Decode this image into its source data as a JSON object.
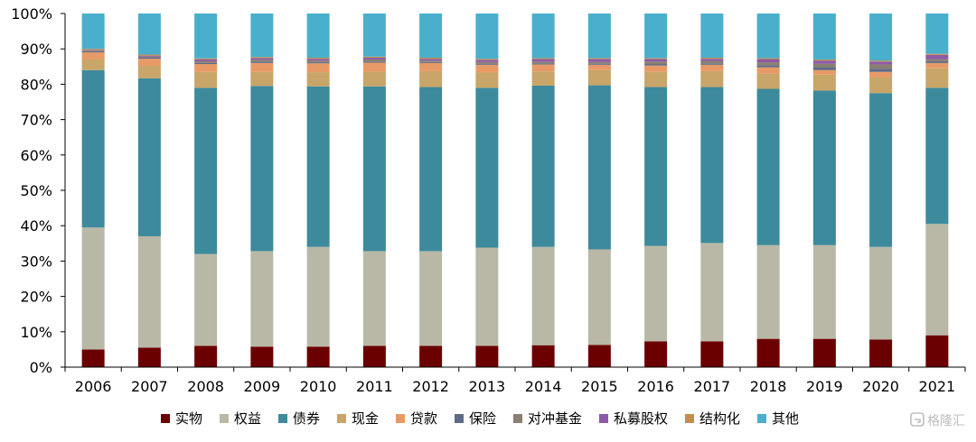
{
  "chart_data": {
    "type": "bar",
    "stacked": true,
    "categories": [
      "2006",
      "2007",
      "2008",
      "2009",
      "2010",
      "2011",
      "2012",
      "2013",
      "2014",
      "2015",
      "2016",
      "2017",
      "2018",
      "2019",
      "2020",
      "2021"
    ],
    "ylim": [
      0,
      100
    ],
    "yticks": [
      "0%",
      "10%",
      "20%",
      "30%",
      "40%",
      "50%",
      "60%",
      "70%",
      "80%",
      "90%",
      "100%"
    ],
    "legend_position": "bottom",
    "series": [
      {
        "name": "实物",
        "color": "#6b0000",
        "values": [
          5.0,
          5.5,
          6.0,
          5.8,
          5.8,
          6.0,
          6.0,
          6.0,
          6.2,
          6.3,
          7.3,
          7.3,
          8.0,
          8.0,
          7.8,
          9.0
        ]
      },
      {
        "name": "权益",
        "color": "#b9b8a6",
        "values": [
          34.5,
          31.5,
          26.0,
          27.0,
          28.2,
          26.8,
          26.8,
          27.8,
          27.8,
          27.0,
          27.0,
          27.8,
          26.5,
          26.5,
          26.2,
          31.5
        ]
      },
      {
        "name": "债券",
        "color": "#3d8a9c",
        "values": [
          44.5,
          44.7,
          47.0,
          46.7,
          45.4,
          46.6,
          46.4,
          45.2,
          45.6,
          46.4,
          44.9,
          44.1,
          44.2,
          43.7,
          43.5,
          38.5
        ]
      },
      {
        "name": "现金",
        "color": "#c8a568",
        "values": [
          3.0,
          3.5,
          4.5,
          4.0,
          4.0,
          4.2,
          4.5,
          4.3,
          4.0,
          4.3,
          4.3,
          4.5,
          4.3,
          4.5,
          4.5,
          5.5
        ]
      },
      {
        "name": "贷款",
        "color": "#e89a66",
        "values": [
          2.0,
          2.0,
          2.2,
          2.5,
          2.5,
          2.5,
          2.3,
          2.2,
          2.0,
          1.5,
          1.8,
          1.8,
          1.8,
          1.3,
          1.5,
          1.5
        ]
      },
      {
        "name": "保险",
        "color": "#5e6b86",
        "values": [
          0.3,
          0.3,
          0.3,
          0.4,
          0.3,
          0.3,
          0.3,
          0.3,
          0.3,
          0.3,
          0.4,
          0.4,
          0.6,
          0.8,
          0.9,
          0.5
        ]
      },
      {
        "name": "对冲基金",
        "color": "#8a7f70",
        "values": [
          0.2,
          0.3,
          0.5,
          0.5,
          0.5,
          0.6,
          0.4,
          0.5,
          0.5,
          0.5,
          0.7,
          0.7,
          0.8,
          1.0,
          1.2,
          0.6
        ]
      },
      {
        "name": "私募股权",
        "color": "#8e5aa8",
        "values": [
          0.2,
          0.3,
          0.5,
          0.5,
          0.5,
          0.5,
          0.5,
          0.6,
          0.7,
          0.8,
          0.7,
          0.6,
          0.9,
          0.9,
          0.8,
          1.2
        ]
      },
      {
        "name": "结构化",
        "color": "#c0904a",
        "values": [
          0.3,
          0.3,
          0.3,
          0.3,
          0.3,
          0.3,
          0.3,
          0.3,
          0.3,
          0.3,
          0.3,
          0.3,
          0.3,
          0.3,
          0.3,
          0.3
        ]
      },
      {
        "name": "其他",
        "color": "#4aafcc",
        "values": [
          10.0,
          11.6,
          12.7,
          12.3,
          12.5,
          12.2,
          12.5,
          12.8,
          12.6,
          12.6,
          12.6,
          12.5,
          12.6,
          13.0,
          13.3,
          11.4
        ]
      }
    ]
  },
  "watermark": {
    "text": "格隆汇",
    "icon": "gelonghui-logo-icon"
  }
}
